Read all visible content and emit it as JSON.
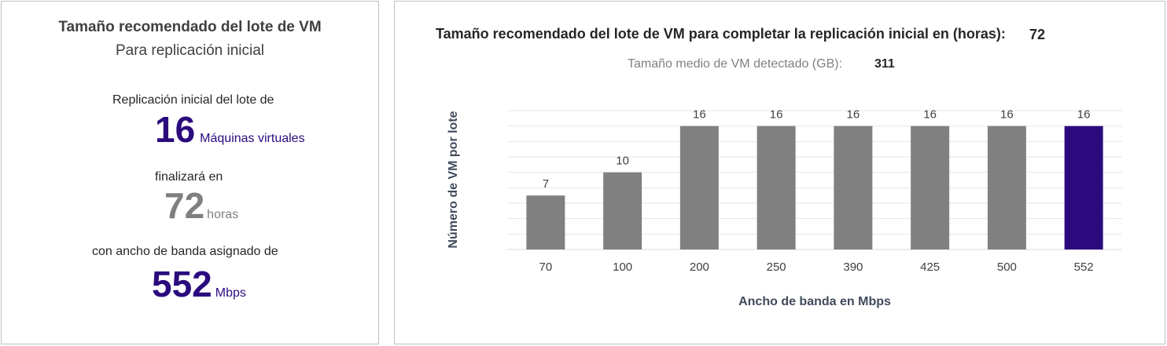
{
  "summary": {
    "title": "Tamaño recomendado del lote de VM",
    "subtitle": "Para replicación inicial",
    "batch_label": "Replicación inicial del lote de",
    "batch_value": "16",
    "batch_unit": "Máquinas virtuales",
    "finish_label": "finalizará en",
    "hours_value": "72",
    "hours_unit": "horas",
    "bandwidth_label": "con ancho de banda asignado de",
    "bandwidth_value": "552",
    "bandwidth_unit": "Mbps"
  },
  "chart_header": {
    "title": "Tamaño recomendado del lote de VM para completar la replicación inicial en (horas):",
    "title_value": "72",
    "subtitle": "Tamaño medio de VM detectado (GB):",
    "subtitle_value": "311"
  },
  "colors": {
    "accent": "#2b0a7d",
    "bar": "#808080",
    "highlight_value": "#7f7f7f"
  },
  "chart_data": {
    "type": "bar",
    "categories": [
      "70",
      "100",
      "200",
      "250",
      "390",
      "425",
      "500",
      "552"
    ],
    "values": [
      7,
      10,
      16,
      16,
      16,
      16,
      16,
      16
    ],
    "highlight_index": 7,
    "xlabel": "Ancho de banda en Mbps",
    "ylabel": "Número de VM por lote",
    "ylim": [
      0,
      18
    ],
    "grid": true,
    "legend": "none"
  }
}
